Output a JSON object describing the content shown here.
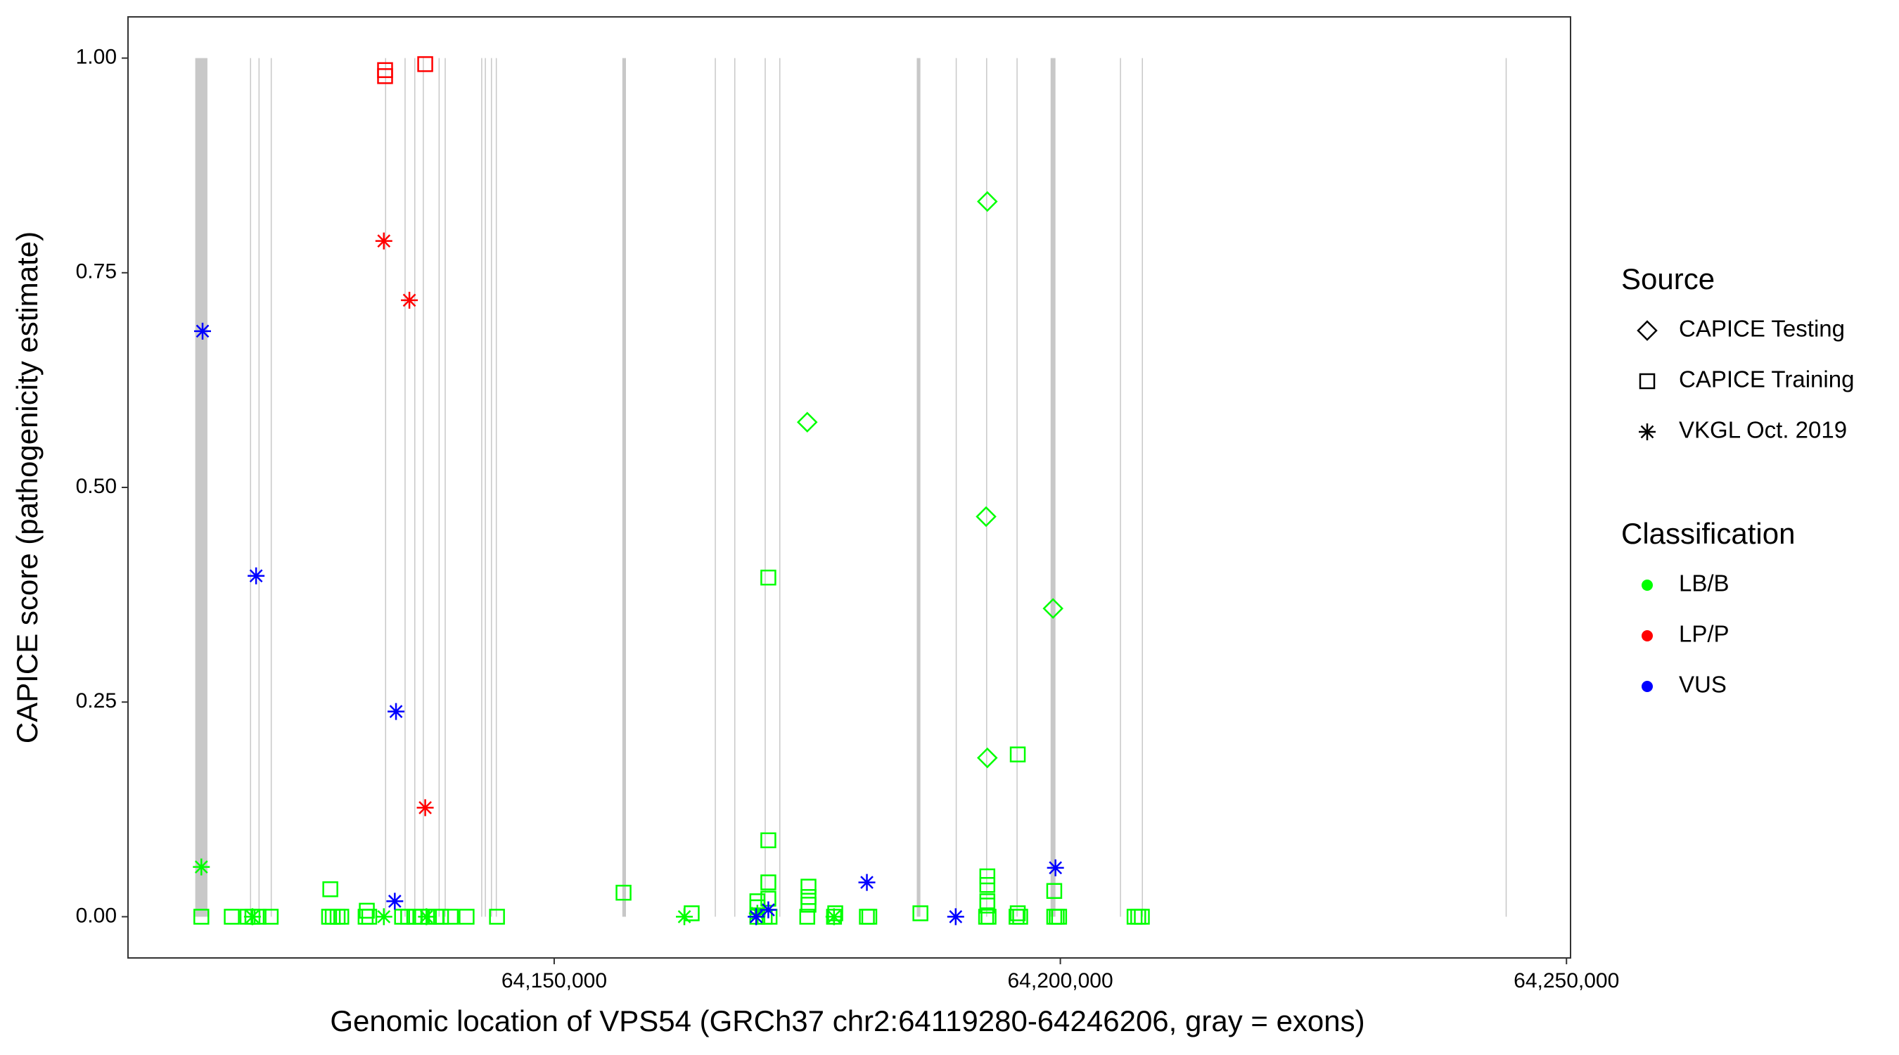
{
  "chart_data": {
    "type": "scatter",
    "x_label": "Genomic location of VPS54 (GRCh37 chr2:64119280-64246206, gray = exons)",
    "y_label": "CAPICE score (pathogenicity estimate)",
    "xlim": [
      64107900,
      64250400
    ],
    "ylim": [
      -0.048,
      1.048
    ],
    "xticks": [
      {
        "value": 64150000,
        "label": "64,150,000"
      },
      {
        "value": 64200000,
        "label": "64,200,000"
      },
      {
        "value": 64250000,
        "label": "64,250,000"
      }
    ],
    "yticks": [
      {
        "value": 0,
        "label": "0.00"
      },
      {
        "value": 0.25,
        "label": "0.25"
      },
      {
        "value": 0.5,
        "label": "0.50"
      },
      {
        "value": 0.75,
        "label": "0.75"
      },
      {
        "value": 1,
        "label": "1.00"
      }
    ],
    "exon_color": "#c8c8c8",
    "exons": [
      [
        64114544,
        64115746
      ],
      [
        64119952,
        64120052
      ],
      [
        64120793,
        64120893
      ],
      [
        64121998,
        64122098
      ],
      [
        64133294,
        64133394
      ],
      [
        64135217,
        64135317
      ],
      [
        64136178,
        64136278
      ],
      [
        64137019,
        64137119
      ],
      [
        64138582,
        64138682
      ],
      [
        64139183,
        64139283
      ],
      [
        64142789,
        64142889
      ],
      [
        64143149,
        64143249
      ],
      [
        64143750,
        64143850
      ],
      [
        64144231,
        64144331
      ],
      [
        64156731,
        64157091
      ],
      [
        64165865,
        64165965
      ],
      [
        64167788,
        64167888
      ],
      [
        64170793,
        64170893
      ],
      [
        64172235,
        64172335
      ],
      [
        64185817,
        64186177
      ],
      [
        64189663,
        64189763
      ],
      [
        64192668,
        64192768
      ],
      [
        64195673,
        64195773
      ],
      [
        64199038,
        64199519
      ],
      [
        64205888,
        64205988
      ],
      [
        64208052,
        64208152
      ],
      [
        64243989,
        64244089
      ]
    ],
    "shape_legend": {
      "title": "Source",
      "items": [
        {
          "name": "CAPICE Testing",
          "shape": "diamond"
        },
        {
          "name": "CAPICE Training",
          "shape": "square"
        },
        {
          "name": "VKGL Oct. 2019",
          "shape": "asterisk"
        }
      ]
    },
    "color_legend": {
      "title": "Classification",
      "items": [
        {
          "name": "LB/B",
          "color": "#00ff00"
        },
        {
          "name": "LP/P",
          "color": "#ff0000"
        },
        {
          "name": "VUS",
          "color": "#0000ff"
        }
      ]
    },
    "series": [
      {
        "source": 0,
        "classification": 0,
        "x": [
          64175000,
          64192788,
          64192668,
          64199279,
          64192788
        ],
        "values": [
          0.576,
          0.833,
          0.466,
          0.359,
          0.185
        ]
      },
      {
        "source": 1,
        "classification": 1,
        "x": [
          64133294,
          64133294,
          64137260
        ],
        "values": [
          0.986,
          0.979,
          0.993
        ]
      },
      {
        "source": 1,
        "classification": 0,
        "x": [
          64127885,
          64131491,
          64156851,
          64163582,
          64170072,
          64170072,
          64171154,
          64171154,
          64171154,
          64171154,
          64175120,
          64175120,
          64175120,
          64192788,
          64192788,
          64192788,
          64192788,
          64195793,
          64199399,
          64177764,
          64195793,
          64186178,
          64115145,
          64118150,
          64119712,
          64120193,
          64120793,
          64121995,
          64127765,
          64128125,
          64128606,
          64128967,
          64131371,
          64131731,
          64134976,
          64135577,
          64136178,
          64136779,
          64137620,
          64138341,
          64138822,
          64139784,
          64141346,
          64144351,
          64170072,
          64170793,
          64171274,
          64175000,
          64177644,
          64180889,
          64181130,
          64192668,
          64192909,
          64195673,
          64196034,
          64199399,
          64199640,
          64199880,
          64207332,
          64207692,
          64208053
        ],
        "values": [
          0.032,
          0.007,
          0.028,
          0.004,
          0.018,
          0.011,
          0.395,
          0.089,
          0.04,
          0.021,
          0.035,
          0.023,
          0.014,
          0.047,
          0.037,
          0.018,
          0.013,
          0.189,
          0.03,
          0.004,
          0.004,
          0.004,
          0,
          0,
          0,
          0,
          0,
          0,
          0,
          0,
          0,
          0,
          0,
          0,
          0,
          0,
          0,
          0,
          0,
          0,
          0,
          0,
          0,
          0,
          0,
          0,
          0,
          0,
          0,
          0,
          0,
          0,
          0,
          0,
          0,
          0,
          0,
          0,
          0,
          0,
          0
        ]
      },
      {
        "source": 2,
        "classification": 0,
        "x": [
          64115145,
          64120193,
          64133174,
          64137380,
          64162860,
          64170072,
          64177644
        ],
        "values": [
          0.058,
          0,
          0,
          0,
          0,
          0.004,
          0
        ]
      },
      {
        "source": 2,
        "classification": 1,
        "x": [
          64133174,
          64135697,
          64137260
        ],
        "values": [
          0.787,
          0.718,
          0.127
        ]
      },
      {
        "source": 2,
        "classification": 2,
        "x": [
          64115265,
          64120553,
          64134375,
          64134255,
          64169952,
          64171154,
          64180889,
          64189663,
          64199519
        ],
        "values": [
          0.682,
          0.397,
          0.239,
          0.018,
          0,
          0.008,
          0.04,
          0,
          0.057
        ]
      }
    ]
  }
}
